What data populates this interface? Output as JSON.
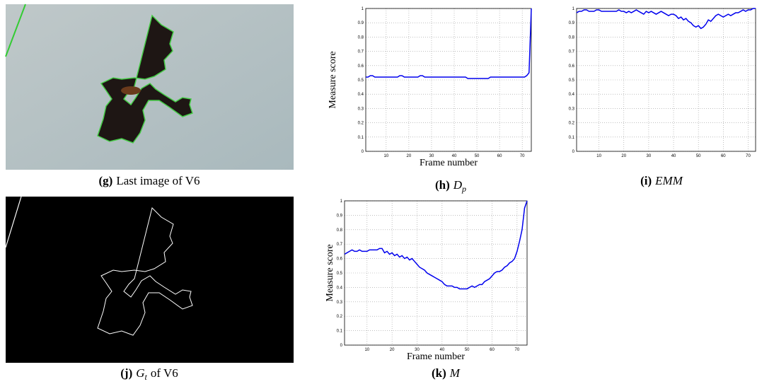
{
  "chart_data": [
    {
      "type": "line",
      "x_label": "Frame number",
      "y_label": "Measure score",
      "x": [
        1,
        2,
        3,
        4,
        5,
        6,
        7,
        8,
        9,
        10,
        11,
        12,
        13,
        14,
        15,
        16,
        17,
        18,
        19,
        20,
        21,
        22,
        23,
        24,
        25,
        26,
        27,
        28,
        29,
        30,
        31,
        32,
        33,
        34,
        35,
        36,
        37,
        38,
        39,
        40,
        41,
        42,
        43,
        44,
        45,
        46,
        47,
        48,
        49,
        50,
        51,
        52,
        53,
        54,
        55,
        56,
        57,
        58,
        59,
        60,
        61,
        62,
        63,
        64,
        65,
        66,
        67,
        68,
        69,
        70,
        71,
        72,
        73,
        74
      ],
      "series": [
        {
          "color": "#0000ee",
          "values": [
            0.52,
            0.52,
            0.53,
            0.53,
            0.52,
            0.52,
            0.52,
            0.52,
            0.52,
            0.52,
            0.52,
            0.52,
            0.52,
            0.52,
            0.52,
            0.53,
            0.53,
            0.52,
            0.52,
            0.52,
            0.52,
            0.52,
            0.52,
            0.52,
            0.53,
            0.53,
            0.52,
            0.52,
            0.52,
            0.52,
            0.52,
            0.52,
            0.52,
            0.52,
            0.52,
            0.52,
            0.52,
            0.52,
            0.52,
            0.52,
            0.52,
            0.52,
            0.52,
            0.52,
            0.52,
            0.51,
            0.51,
            0.51,
            0.51,
            0.51,
            0.51,
            0.51,
            0.51,
            0.51,
            0.51,
            0.52,
            0.52,
            0.52,
            0.52,
            0.52,
            0.52,
            0.52,
            0.52,
            0.52,
            0.52,
            0.52,
            0.52,
            0.52,
            0.52,
            0.52,
            0.52,
            0.53,
            0.55,
            1.0
          ]
        }
      ],
      "xlim": [
        1,
        74
      ],
      "xticks": [
        10,
        20,
        30,
        40,
        50,
        60,
        70
      ],
      "ylim": [
        0,
        1
      ],
      "yticks": [
        0,
        0.1,
        0.2,
        0.3,
        0.4,
        0.5,
        0.6,
        0.7,
        0.8,
        0.9,
        1
      ],
      "grid": true
    },
    {
      "type": "line",
      "x": [
        1,
        2,
        3,
        4,
        5,
        6,
        7,
        8,
        9,
        10,
        11,
        12,
        13,
        14,
        15,
        16,
        17,
        18,
        19,
        20,
        21,
        22,
        23,
        24,
        25,
        26,
        27,
        28,
        29,
        30,
        31,
        32,
        33,
        34,
        35,
        36,
        37,
        38,
        39,
        40,
        41,
        42,
        43,
        44,
        45,
        46,
        47,
        48,
        49,
        50,
        51,
        52,
        53,
        54,
        55,
        56,
        57,
        58,
        59,
        60,
        61,
        62,
        63,
        64,
        65,
        66,
        67,
        68,
        69,
        70,
        71,
        72,
        73
      ],
      "series": [
        {
          "color": "#0000ee",
          "values": [
            0.97,
            0.98,
            0.98,
            0.99,
            0.99,
            0.98,
            0.98,
            0.98,
            0.99,
            0.99,
            0.98,
            0.98,
            0.98,
            0.98,
            0.98,
            0.98,
            0.98,
            0.99,
            0.98,
            0.98,
            0.97,
            0.98,
            0.97,
            0.98,
            0.99,
            0.98,
            0.97,
            0.96,
            0.98,
            0.97,
            0.98,
            0.97,
            0.96,
            0.97,
            0.98,
            0.97,
            0.96,
            0.95,
            0.96,
            0.96,
            0.95,
            0.93,
            0.94,
            0.92,
            0.93,
            0.91,
            0.9,
            0.88,
            0.87,
            0.88,
            0.86,
            0.87,
            0.89,
            0.92,
            0.91,
            0.93,
            0.95,
            0.96,
            0.95,
            0.94,
            0.95,
            0.96,
            0.95,
            0.96,
            0.97,
            0.97,
            0.98,
            0.99,
            0.98,
            0.99,
            0.99,
            1.0,
            1.0
          ]
        }
      ],
      "xlim": [
        1,
        73
      ],
      "xticks": [
        10,
        20,
        30,
        40,
        50,
        60,
        70
      ],
      "ylim": [
        0,
        1
      ],
      "yticks": [
        0,
        0.1,
        0.2,
        0.3,
        0.4,
        0.5,
        0.6,
        0.7,
        0.8,
        0.9,
        1
      ],
      "grid": true
    },
    {
      "type": "line",
      "x_label": "Frame number",
      "y_label": "Measure score",
      "x": [
        1,
        2,
        3,
        4,
        5,
        6,
        7,
        8,
        9,
        10,
        11,
        12,
        13,
        14,
        15,
        16,
        17,
        18,
        19,
        20,
        21,
        22,
        23,
        24,
        25,
        26,
        27,
        28,
        29,
        30,
        31,
        32,
        33,
        34,
        35,
        36,
        37,
        38,
        39,
        40,
        41,
        42,
        43,
        44,
        45,
        46,
        47,
        48,
        49,
        50,
        51,
        52,
        53,
        54,
        55,
        56,
        57,
        58,
        59,
        60,
        61,
        62,
        63,
        64,
        65,
        66,
        67,
        68,
        69,
        70,
        71,
        72,
        73,
        74
      ],
      "series": [
        {
          "color": "#0000ee",
          "values": [
            0.63,
            0.64,
            0.65,
            0.66,
            0.65,
            0.65,
            0.66,
            0.65,
            0.65,
            0.65,
            0.66,
            0.66,
            0.66,
            0.66,
            0.67,
            0.67,
            0.64,
            0.65,
            0.63,
            0.64,
            0.62,
            0.63,
            0.61,
            0.62,
            0.6,
            0.61,
            0.59,
            0.6,
            0.58,
            0.56,
            0.54,
            0.53,
            0.52,
            0.5,
            0.49,
            0.48,
            0.47,
            0.46,
            0.45,
            0.44,
            0.42,
            0.41,
            0.41,
            0.41,
            0.4,
            0.4,
            0.39,
            0.39,
            0.39,
            0.39,
            0.4,
            0.41,
            0.4,
            0.41,
            0.42,
            0.42,
            0.44,
            0.45,
            0.46,
            0.48,
            0.5,
            0.51,
            0.51,
            0.52,
            0.54,
            0.55,
            0.57,
            0.58,
            0.6,
            0.65,
            0.72,
            0.8,
            0.95,
            1.0
          ]
        }
      ],
      "xlim": [
        1,
        74
      ],
      "xticks": [
        10,
        20,
        30,
        40,
        50,
        60,
        70
      ],
      "ylim": [
        0,
        1
      ],
      "yticks": [
        0,
        0.1,
        0.2,
        0.3,
        0.4,
        0.5,
        0.6,
        0.7,
        0.8,
        0.9,
        1
      ],
      "grid": true
    }
  ],
  "captions": [
    {
      "label": "(g)",
      "text": "Last image of V6"
    },
    {
      "label": "(h)",
      "math": "D",
      "sub": "p"
    },
    {
      "label": "(i)",
      "math": "EMM"
    },
    {
      "label": "(j)",
      "math": "G",
      "sub": "t",
      "text": "of V6"
    },
    {
      "label": "(k)",
      "math": "M"
    }
  ]
}
